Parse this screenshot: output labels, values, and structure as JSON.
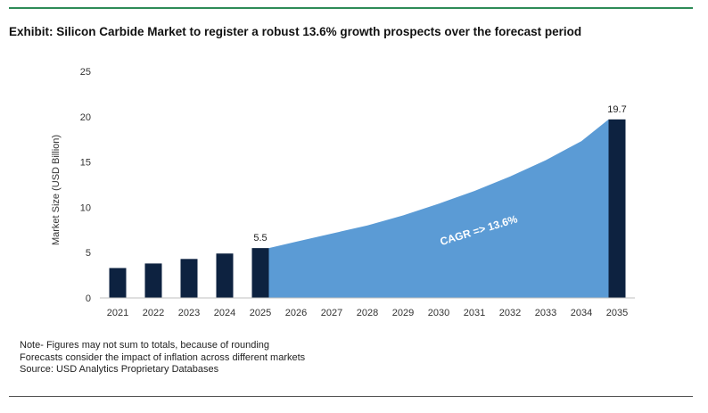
{
  "header": {
    "title": "Exhibit: Silicon Carbide Market to register a robust 13.6% growth prospects over the forecast period"
  },
  "notes": [
    "Note- Figures may not sum to totals, because of rounding",
    "Forecasts consider the impact of inflation across different markets",
    "Source: USD Analytics Proprietary Databases"
  ],
  "colors": {
    "bar": "#0d2240",
    "area": "#5b9bd5",
    "rule": "#2e8b57"
  },
  "chart_data": {
    "type": "bar",
    "title": "Silicon Carbide Market",
    "xlabel": "",
    "ylabel": "Market Size (USD Billion)",
    "ylim": [
      0,
      25
    ],
    "yticks": [
      0,
      5,
      10,
      15,
      20,
      25
    ],
    "categories": [
      "2021",
      "2022",
      "2023",
      "2024",
      "2025",
      "2026",
      "2027",
      "2028",
      "2029",
      "2030",
      "2031",
      "2032",
      "2033",
      "2034",
      "2035"
    ],
    "series": [
      {
        "name": "Market Size",
        "type": "bar",
        "values": [
          3.3,
          3.8,
          4.3,
          4.9,
          5.5,
          null,
          null,
          null,
          null,
          null,
          null,
          null,
          null,
          null,
          19.7
        ]
      },
      {
        "name": "Forecast",
        "type": "area",
        "values": [
          null,
          null,
          null,
          null,
          5.5,
          6.2,
          7.1,
          8.0,
          9.1,
          10.4,
          11.8,
          13.4,
          15.2,
          17.3,
          19.7
        ]
      }
    ],
    "data_labels": [
      {
        "category": "2025",
        "text": "5.5"
      },
      {
        "category": "2035",
        "text": "19.7"
      }
    ],
    "annotation": "CAGR => 13.6%",
    "grid": false,
    "legend": "none"
  }
}
